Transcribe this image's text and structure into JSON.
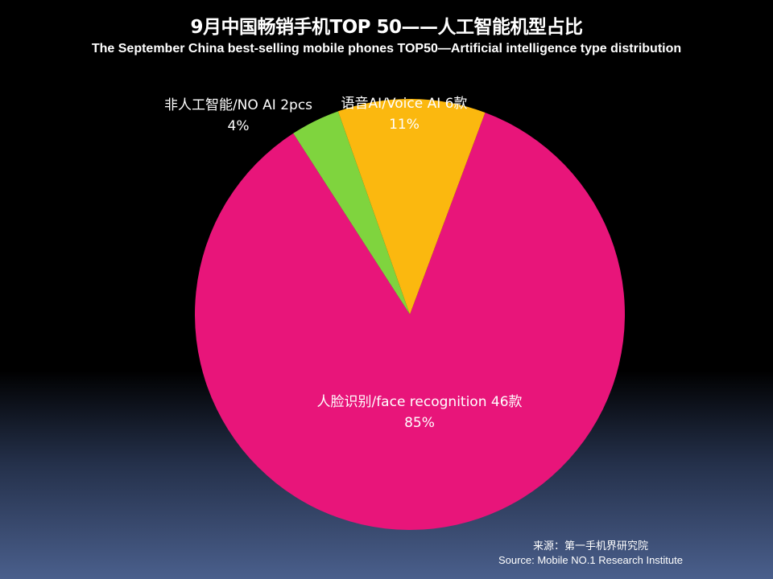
{
  "chart_data": {
    "type": "pie",
    "title": "9月中国畅销手机TOP 50——人工智能机型占比",
    "subtitle": "The  September  China  best-selling  mobile  phones  TOP50—Artificial intelligence type distribution",
    "slices": [
      {
        "label": "人脸识别/face recognition 46款",
        "percent_label": "85%",
        "value": 46,
        "color": "#e8157a"
      },
      {
        "label": "非人工智能/NO AI 2pcs",
        "percent_label": "4%",
        "value": 2,
        "color": "#7fd43e"
      },
      {
        "label": "语音AI/Voice AI  6款",
        "percent_label": "11%",
        "value": 6,
        "color": "#fbb80f"
      }
    ]
  },
  "source": {
    "cn": "来源：第一手机界研究院",
    "en": "Source: Mobile NO.1 Research Institute"
  }
}
